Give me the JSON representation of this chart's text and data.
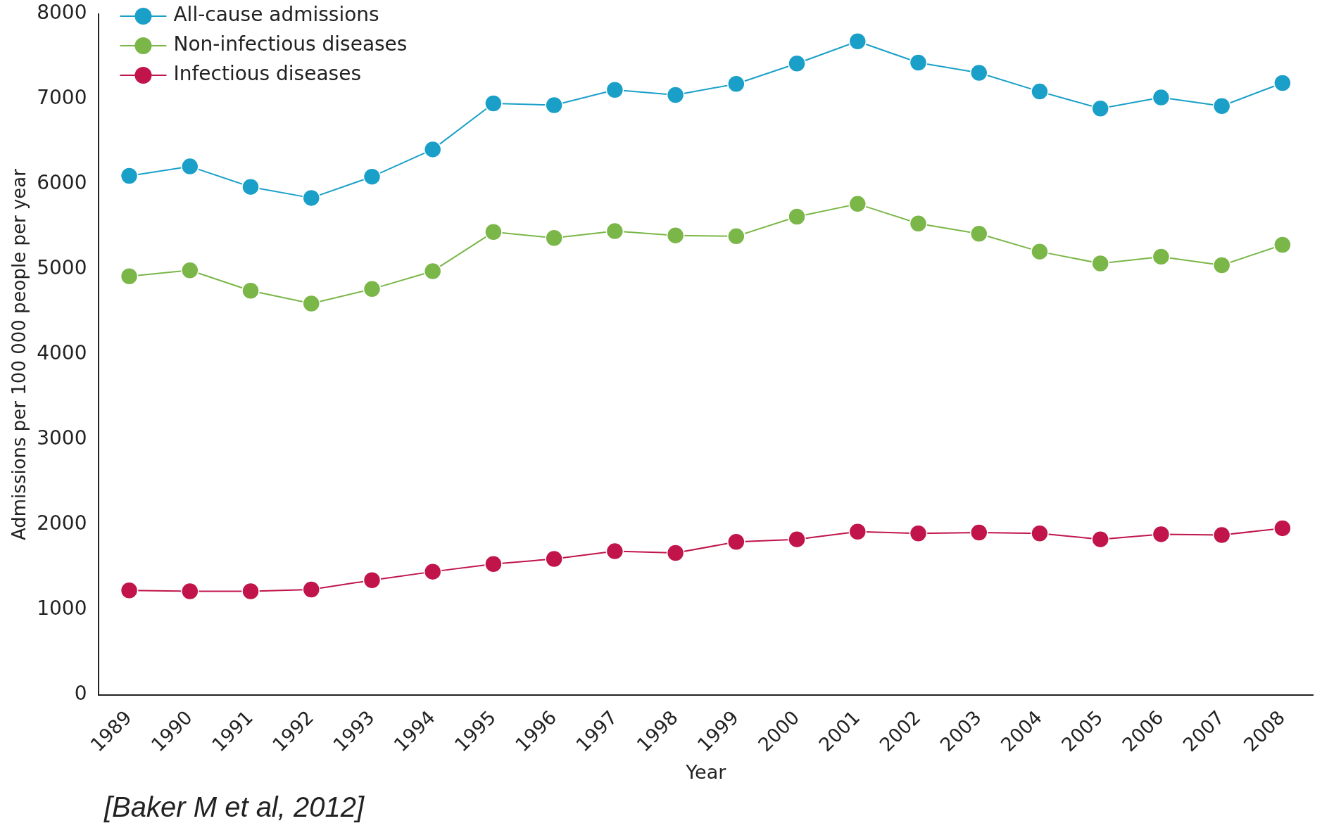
{
  "chart_data": {
    "type": "line",
    "categories": [
      "1989",
      "1990",
      "1991",
      "1992",
      "1993",
      "1994",
      "1995",
      "1996",
      "1997",
      "1998",
      "1999",
      "2000",
      "2001",
      "2002",
      "2003",
      "2004",
      "2005",
      "2006",
      "2007",
      "2008"
    ],
    "series": [
      {
        "name": "All-cause admissions",
        "color": "#1aa0c8",
        "values": [
          6100,
          6210,
          5970,
          5840,
          6090,
          6410,
          6950,
          6930,
          7110,
          7050,
          7180,
          7420,
          7680,
          7430,
          7310,
          7090,
          6890,
          7020,
          6920,
          7190
        ]
      },
      {
        "name": "Non-infectious diseases",
        "color": "#7ab648",
        "values": [
          4920,
          4990,
          4750,
          4600,
          4770,
          4980,
          5440,
          5370,
          5450,
          5400,
          5390,
          5620,
          5770,
          5540,
          5420,
          5210,
          5070,
          5150,
          5050,
          5290
        ]
      },
      {
        "name": "Infectious diseases",
        "color": "#c0144a",
        "values": [
          1230,
          1220,
          1220,
          1240,
          1350,
          1450,
          1540,
          1600,
          1690,
          1670,
          1800,
          1830,
          1920,
          1900,
          1910,
          1900,
          1830,
          1890,
          1880,
          1960
        ]
      }
    ],
    "xlabel": "Year",
    "ylabel": "Admissions per 100 000 people per year",
    "ylim": [
      0,
      8000
    ],
    "yticks": [
      0,
      1000,
      2000,
      3000,
      4000,
      5000,
      6000,
      7000,
      8000
    ],
    "grid": false,
    "legend": "top left",
    "marker": "circle",
    "line_style": "solid",
    "annotations": [
      "[Baker M et al, 2012]"
    ]
  }
}
